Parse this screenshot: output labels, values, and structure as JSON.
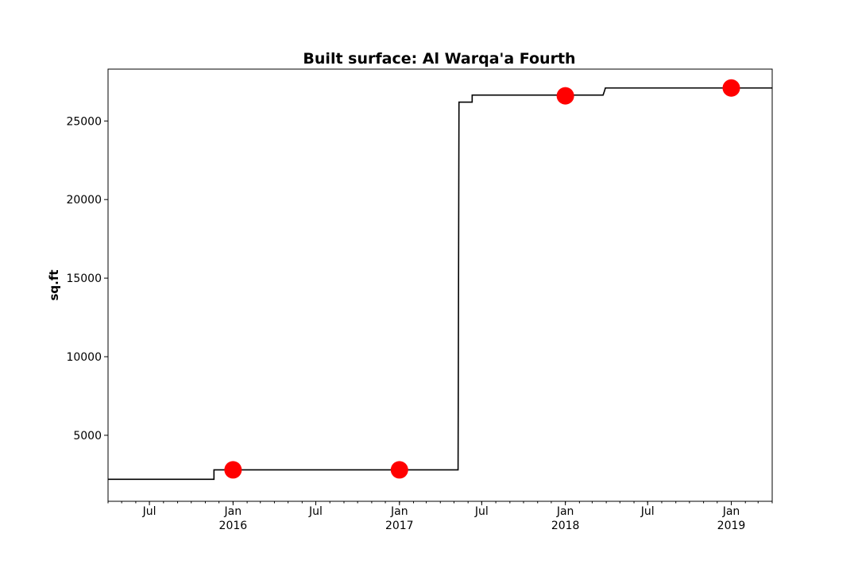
{
  "chart_data": {
    "type": "line",
    "title": "Built surface: Al Warqa'a Fourth",
    "xlabel": "",
    "ylabel": "sq.ft",
    "x_axis": {
      "type": "date",
      "range": [
        "2015-04-01",
        "2019-04-01"
      ],
      "major_ticks": [
        {
          "date": "2015-07-01",
          "label": "Jul"
        },
        {
          "date": "2016-01-01",
          "label": "Jan",
          "year": "2016"
        },
        {
          "date": "2016-07-01",
          "label": "Jul"
        },
        {
          "date": "2017-01-01",
          "label": "Jan",
          "year": "2017"
        },
        {
          "date": "2017-07-01",
          "label": "Jul"
        },
        {
          "date": "2018-01-01",
          "label": "Jan",
          "year": "2018"
        },
        {
          "date": "2018-07-01",
          "label": "Jul"
        },
        {
          "date": "2019-01-01",
          "label": "Jan",
          "year": "2019"
        }
      ]
    },
    "y_axis": {
      "range": [
        800,
        28300
      ],
      "ticks": [
        5000,
        10000,
        15000,
        20000,
        25000
      ]
    },
    "grid": false,
    "step_series": {
      "color": "#000000",
      "points": [
        {
          "x": "2015-04-01",
          "y": 2200
        },
        {
          "x": "2015-11-20",
          "y": 2200
        },
        {
          "x": "2015-11-20",
          "y": 2800
        },
        {
          "x": "2017-05-10",
          "y": 2800
        },
        {
          "x": "2017-05-12",
          "y": 26200
        },
        {
          "x": "2017-06-10",
          "y": 26200
        },
        {
          "x": "2017-06-10",
          "y": 26650
        },
        {
          "x": "2018-03-25",
          "y": 26650
        },
        {
          "x": "2018-03-28",
          "y": 26900
        },
        {
          "x": "2018-03-30",
          "y": 27100
        },
        {
          "x": "2019-04-01",
          "y": 27100
        }
      ]
    },
    "markers": {
      "color": "#ff0000",
      "points": [
        {
          "x": "2016-01-01",
          "y": 2800
        },
        {
          "x": "2017-01-01",
          "y": 2800
        },
        {
          "x": "2018-01-01",
          "y": 26600
        },
        {
          "x": "2019-01-01",
          "y": 27100
        }
      ]
    }
  }
}
